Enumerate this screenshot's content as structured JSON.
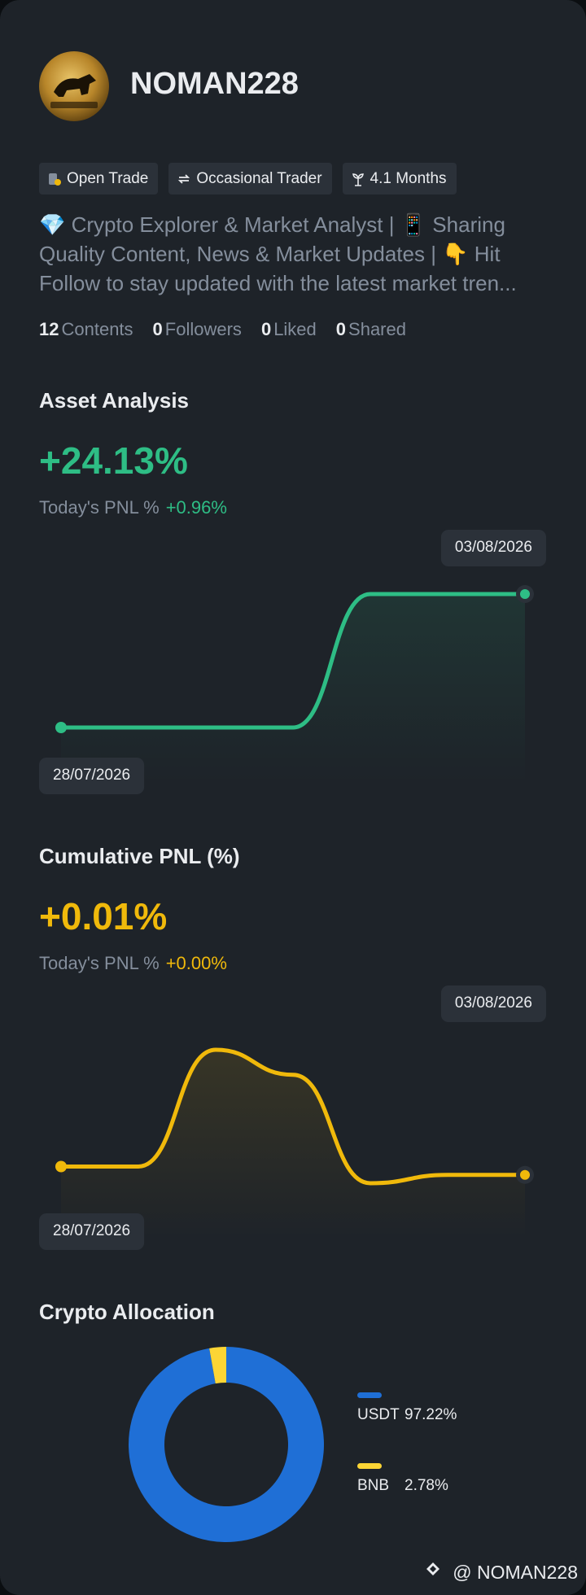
{
  "profile": {
    "name": "NOMAN228",
    "tags": [
      "Open Trade",
      "Occasional Trader",
      "4.1 Months"
    ],
    "bio": "💎 Crypto Explorer & Market Analyst | 📱 Sharing Quality Content, News & Market Updates | 👇 Hit Follow to stay updated with the latest market tren...",
    "stats": [
      {
        "value": "12",
        "label": "Contents"
      },
      {
        "value": "0",
        "label": "Followers"
      },
      {
        "value": "0",
        "label": "Liked"
      },
      {
        "value": "0",
        "label": "Shared"
      }
    ]
  },
  "chart_data": [
    {
      "type": "line",
      "title": "Asset Analysis",
      "change": "+24.13%",
      "today_label": "Today's PNL %",
      "today_change": "+0.96%",
      "categories": [
        "28/07/2026",
        null,
        null,
        null,
        null,
        null,
        "03/08/2026"
      ],
      "values": [
        0,
        0,
        0,
        0,
        24.13,
        24.13,
        24.13
      ],
      "color": "#2ebd85"
    },
    {
      "type": "line",
      "title": "Cumulative PNL (%)",
      "change": "+0.01%",
      "today_label": "Today's PNL %",
      "today_change": "+0.00%",
      "categories": [
        "28/07/2026",
        null,
        null,
        null,
        null,
        null,
        "03/08/2026"
      ],
      "values": [
        0.02,
        0.02,
        0.16,
        0.13,
        0,
        0.01,
        0.01
      ],
      "color": "#f0b90b"
    },
    {
      "type": "pie",
      "title": "Crypto Allocation",
      "categories": [
        "USDT",
        "BNB"
      ],
      "values": [
        97.22,
        2.78
      ],
      "value_labels": [
        "97.22%",
        "2.78%"
      ],
      "colors": [
        "#1f6fd6",
        "#fcd535"
      ]
    }
  ],
  "footer": {
    "handle": "@ NOMAN228"
  }
}
